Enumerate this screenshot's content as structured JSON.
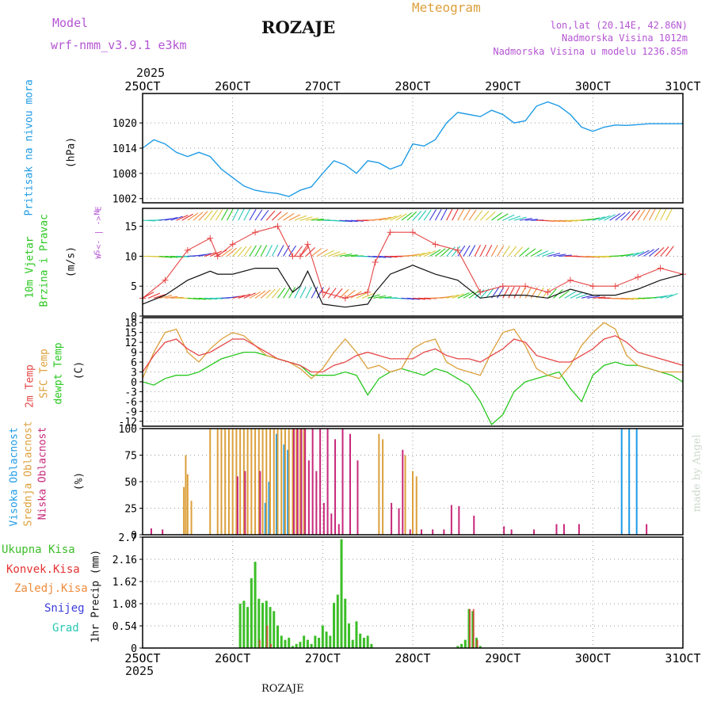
{
  "header": {
    "model_label": "Model",
    "model_name": "wrf-nmm_v3.9.1 e3km",
    "station": "ROZAJE",
    "product": "Meteogram",
    "lonlat": "lon,lat (20.14E, 42.86N)",
    "elevation": "Nadmorska Visina 1012m",
    "model_elevation": "Nadmorska Visina u modelu 1236.85m"
  },
  "time_axis": {
    "year_top": "2025",
    "year_bottom": "2025",
    "ticks": [
      "25OCT",
      "26OCT",
      "27OCT",
      "28OCT",
      "29OCT",
      "30OCT",
      "31OCT"
    ]
  },
  "footer": {
    "station": "ROZAJE",
    "credit": "made by Angel"
  },
  "colors": {
    "pressure": "#1e9be6",
    "temp2m": "#e64646",
    "sfc": "#dca03c",
    "dewpt": "#28c81e",
    "high": "#1e9be6",
    "mid": "#dca03c",
    "low": "#c8287a",
    "precip": "#3cbe28",
    "conv": "#e63232",
    "frozen": "#f08c3c",
    "snow": "#3c3cdc",
    "hail": "#28c8b4",
    "speed": "#111111",
    "gust": "#e64646"
  },
  "chart_data": [
    {
      "type": "line",
      "title": "Pritisak na nivou mora",
      "ylabel": "(hPa)",
      "ylim": [
        1001,
        1027
      ],
      "yticks": [
        1002,
        1008,
        1014,
        1020
      ],
      "x": [
        0,
        3,
        6,
        9,
        12,
        15,
        18,
        21,
        24,
        27,
        30,
        33,
        36,
        39,
        42,
        45,
        48,
        51,
        54,
        57,
        60,
        63,
        66,
        69,
        72,
        75,
        78,
        81,
        84,
        87,
        90,
        93,
        96,
        99,
        102,
        105,
        108,
        111,
        114,
        117,
        120,
        123,
        126,
        129,
        132,
        135,
        138,
        141,
        144
      ],
      "series": [
        {
          "name": "pressure",
          "values": [
            1014,
            1016,
            1015,
            1013,
            1012,
            1013,
            1012,
            1009,
            1007,
            1005,
            1004,
            1003.5,
            1003.2,
            1002.5,
            1004,
            1004.8,
            1008,
            1011,
            1010,
            1008,
            1011,
            1010.5,
            1009,
            1010,
            1015,
            1014.5,
            1016,
            1020,
            1022.5,
            1022,
            1021.5,
            1023,
            1022,
            1020,
            1020.5,
            1024,
            1025,
            1024,
            1022,
            1019,
            1018,
            1019,
            1019.5,
            1019.4,
            1019.6,
            1019.8,
            1019.8,
            1019.8,
            1019.8
          ]
        }
      ]
    },
    {
      "type": "line",
      "title": "10m Vjetar Brzina i Pravac",
      "ylabel": "(m/s)",
      "direction_legend": [
        "S",
        "W <- | -> E",
        "N"
      ],
      "ylim": [
        0,
        18
      ],
      "yticks": [
        0,
        5,
        10,
        15
      ],
      "x": [
        0,
        6,
        12,
        18,
        20,
        24,
        30,
        36,
        40,
        42,
        44,
        48,
        54,
        60,
        62,
        66,
        72,
        78,
        84,
        90,
        96,
        102,
        108,
        114,
        120,
        126,
        132,
        138,
        144
      ],
      "series": [
        {
          "name": "wind speed",
          "values": [
            2,
            3.5,
            6,
            7.5,
            7,
            7,
            8,
            8,
            4,
            5,
            7.5,
            2,
            1.5,
            2,
            4,
            7,
            8.5,
            7,
            6,
            3,
            3.5,
            3.5,
            3,
            4.5,
            3.5,
            3.5,
            4.5,
            6,
            7
          ]
        },
        {
          "name": "wind gust",
          "values": [
            3,
            6,
            11,
            13,
            10,
            12,
            14,
            15,
            10,
            10,
            12,
            4,
            3,
            4,
            9,
            14,
            14,
            12,
            11,
            4,
            5,
            5,
            4,
            6,
            5,
            5,
            6.5,
            8,
            7
          ]
        }
      ]
    },
    {
      "type": "line",
      "title": "2m Temp / SFC Temp / dewpt Temp",
      "ylabel": "(C)",
      "ylim": [
        -13.5,
        19.5
      ],
      "yticks": [
        -12,
        -9,
        -6,
        -3,
        0,
        3,
        6,
        9,
        12,
        15,
        18
      ],
      "x": [
        0,
        3,
        6,
        9,
        12,
        15,
        18,
        21,
        24,
        27,
        30,
        33,
        36,
        39,
        42,
        45,
        48,
        51,
        54,
        57,
        60,
        63,
        66,
        69,
        72,
        75,
        78,
        81,
        84,
        87,
        90,
        93,
        96,
        99,
        102,
        105,
        108,
        111,
        114,
        117,
        120,
        123,
        126,
        129,
        132,
        135,
        138,
        141,
        144
      ],
      "series": [
        {
          "name": "2m Temp",
          "values": [
            3,
            8,
            12,
            13,
            10,
            8,
            9,
            11,
            13,
            13,
            11,
            9,
            7,
            6,
            5,
            3,
            3,
            5,
            6,
            8,
            9,
            8,
            7,
            7,
            7,
            9,
            10,
            8,
            7,
            7,
            6,
            8,
            10,
            13,
            12,
            8,
            7,
            6,
            6,
            8,
            10,
            13,
            14,
            12,
            9,
            8,
            7,
            6,
            5
          ]
        },
        {
          "name": "SFC Temp",
          "values": [
            1,
            9,
            15,
            16,
            9,
            6,
            10,
            13,
            15,
            14,
            11,
            8,
            7,
            6,
            4,
            1,
            4,
            9,
            13,
            9,
            4,
            5,
            3,
            4,
            10,
            12,
            13,
            6,
            4,
            3,
            2,
            9,
            15,
            16,
            11,
            4,
            2,
            1,
            5,
            11,
            15,
            18,
            16,
            8,
            5,
            4,
            3,
            3,
            3
          ]
        },
        {
          "name": "dewpt Temp",
          "values": [
            0,
            -1,
            1,
            2,
            2,
            3,
            5,
            7,
            8,
            9,
            9,
            8,
            7,
            6,
            5,
            2,
            2,
            2,
            3,
            2,
            -4,
            1,
            3,
            4,
            3,
            2,
            4,
            3,
            1,
            -1,
            -6,
            -13,
            -10,
            -3,
            0,
            1,
            2,
            3,
            -2,
            -6,
            2,
            5,
            6,
            5,
            5,
            4,
            3,
            2,
            0
          ]
        }
      ]
    },
    {
      "type": "bar",
      "title": "Visoka / Srednja / Niska Oblacnost",
      "ylabel": "(%)",
      "ylim": [
        0,
        100
      ],
      "yticks": [
        0,
        25,
        50,
        75,
        100
      ],
      "x": [
        2,
        5,
        8,
        10,
        10.5,
        11,
        11.5,
        12,
        13,
        14,
        15,
        16,
        17,
        18,
        19,
        20,
        21,
        22,
        23,
        24,
        25,
        26,
        27,
        28,
        29,
        30,
        31,
        32,
        33,
        34,
        35,
        36,
        37,
        38,
        39,
        40,
        41,
        42,
        43,
        44,
        45,
        46,
        47,
        48,
        49,
        50,
        51,
        52,
        53,
        54,
        55,
        56,
        57,
        58,
        59,
        60,
        61,
        62,
        63,
        64,
        65,
        66,
        67,
        68,
        69,
        70,
        71,
        72,
        73,
        74,
        75,
        76,
        77,
        78,
        80,
        82,
        84,
        86,
        88,
        90,
        92,
        94,
        96,
        98,
        100,
        102,
        104,
        106,
        108,
        110,
        112,
        114,
        116,
        118,
        120,
        122,
        124,
        126,
        128,
        130,
        132,
        134,
        136,
        138,
        140,
        142
      ],
      "series": [
        {
          "name": "Visoka Oblacnost",
          "values": [
            0,
            0,
            0,
            0,
            0,
            0,
            0,
            0,
            0,
            0,
            0,
            0,
            0,
            0,
            0,
            0,
            0,
            0,
            0,
            0,
            0,
            0,
            0,
            0,
            0,
            0,
            0,
            0,
            30,
            50,
            0,
            95,
            0,
            85,
            80,
            0,
            0,
            0,
            0,
            0,
            0,
            0,
            0,
            0,
            0,
            0,
            0,
            0,
            0,
            0,
            0,
            0,
            0,
            0,
            0,
            0,
            0,
            0,
            0,
            0,
            0,
            0,
            0,
            0,
            0,
            0,
            0,
            0,
            0,
            0,
            0,
            0,
            0,
            0,
            0,
            0,
            0,
            0,
            0,
            0,
            0,
            0,
            0,
            0,
            0,
            0,
            0,
            0,
            0,
            0,
            0,
            0,
            0,
            0,
            0,
            0,
            0,
            0,
            100,
            100,
            100,
            0,
            0,
            0,
            0,
            0
          ]
        },
        {
          "name": "Srednja Oblacnost",
          "values": [
            0,
            0,
            0,
            0,
            0,
            45,
            75,
            57,
            32,
            0,
            0,
            0,
            0,
            100,
            0,
            100,
            100,
            100,
            100,
            100,
            100,
            100,
            100,
            100,
            100,
            100,
            100,
            100,
            100,
            100,
            100,
            100,
            100,
            100,
            100,
            100,
            100,
            100,
            100,
            0,
            0,
            0,
            0,
            0,
            0,
            0,
            0,
            0,
            0,
            0,
            0,
            0,
            0,
            0,
            0,
            0,
            0,
            0,
            95,
            90,
            0,
            0,
            0,
            0,
            0,
            75,
            0,
            60,
            55,
            0,
            0,
            0,
            0,
            0,
            0,
            0,
            0,
            0,
            0,
            0,
            0,
            0,
            0,
            0,
            0,
            0,
            0,
            0,
            0,
            0,
            0,
            0,
            0,
            0,
            0,
            0,
            0,
            0,
            0,
            0,
            0,
            0,
            0,
            0,
            0,
            0
          ]
        },
        {
          "name": "Niska Oblacnost",
          "values": [
            6,
            5,
            0,
            0,
            0,
            0,
            0,
            0,
            0,
            0,
            0,
            0,
            0,
            0,
            0,
            0,
            0,
            0,
            0,
            0,
            55,
            0,
            60,
            0,
            0,
            0,
            60,
            0,
            0,
            0,
            0,
            0,
            0,
            0,
            0,
            100,
            100,
            100,
            100,
            70,
            100,
            60,
            100,
            30,
            100,
            20,
            90,
            10,
            100,
            0,
            95,
            0,
            70,
            0,
            0,
            0,
            0,
            0,
            0,
            0,
            0,
            30,
            0,
            25,
            80,
            0,
            5,
            0,
            0,
            5,
            0,
            0,
            5,
            0,
            5,
            28,
            27,
            0,
            18,
            0,
            0,
            0,
            8,
            5,
            0,
            0,
            5,
            0,
            0,
            10,
            10,
            0,
            10,
            0,
            0,
            0,
            0,
            0,
            0,
            0,
            0,
            10,
            0,
            0,
            0,
            0
          ]
        }
      ]
    },
    {
      "type": "bar",
      "title": "1hr Precip",
      "ylabel": "1hr Precip (mm)",
      "legend": [
        "Ukupna Kisa",
        "Konvek.Kisa",
        "Zaledj.Kisa",
        "Snijeg",
        "Grad"
      ],
      "ylim": [
        0,
        2.7
      ],
      "yticks": [
        0,
        0.54,
        1.08,
        1.62,
        2.16,
        2.7
      ],
      "x": [
        26,
        27,
        28,
        29,
        30,
        31,
        32,
        33,
        34,
        35,
        36,
        37,
        38,
        39,
        40,
        41,
        42,
        43,
        44,
        45,
        46,
        47,
        48,
        49,
        50,
        51,
        52,
        53,
        54,
        55,
        56,
        57,
        58,
        59,
        60,
        61,
        84,
        85,
        86,
        87,
        88,
        89,
        90
      ],
      "series": [
        {
          "name": "Ukupna Kisa",
          "values": [
            1.08,
            1.15,
            1.0,
            1.7,
            2.1,
            1.2,
            1.1,
            1.15,
            1.0,
            0.9,
            0.55,
            0.3,
            0.2,
            0.25,
            0.05,
            0.1,
            0.15,
            0.3,
            0.2,
            0.1,
            0.3,
            0.25,
            0.55,
            0.4,
            0.3,
            1.1,
            1.3,
            2.65,
            1.2,
            0.6,
            0.2,
            0.65,
            0.35,
            0.25,
            0.3,
            0.1,
            0.05,
            0.1,
            0.2,
            0.95,
            0.9,
            0.25,
            0.05
          ]
        },
        {
          "name": "Konvek.Kisa",
          "values": [
            0,
            0,
            0,
            0,
            0,
            0.2,
            0,
            0.55,
            0.1,
            0,
            0,
            0,
            0,
            0,
            0,
            0,
            0,
            0,
            0,
            0,
            0,
            0,
            0,
            0,
            0,
            0,
            0,
            0,
            0,
            0,
            0,
            0,
            0,
            0,
            0,
            0,
            0,
            0,
            0,
            0.95,
            0.95,
            0.2,
            0
          ]
        },
        {
          "name": "Zaledj.Kisa",
          "values": [
            0,
            0,
            0,
            0,
            0,
            0,
            0,
            0,
            0,
            0,
            0,
            0,
            0,
            0,
            0,
            0,
            0,
            0,
            0,
            0,
            0,
            0,
            0,
            0,
            0,
            0,
            0,
            0,
            0,
            0,
            0,
            0,
            0,
            0,
            0,
            0,
            0,
            0,
            0,
            0,
            0,
            0,
            0
          ]
        },
        {
          "name": "Snijeg",
          "values": [
            0,
            0,
            0,
            0,
            0,
            0,
            0,
            0,
            0,
            0,
            0,
            0,
            0,
            0,
            0,
            0,
            0,
            0,
            0,
            0,
            0,
            0,
            0,
            0,
            0,
            0,
            0,
            0,
            0,
            0,
            0,
            0,
            0,
            0,
            0,
            0,
            0,
            0,
            0,
            0,
            0,
            0,
            0
          ]
        },
        {
          "name": "Grad",
          "values": [
            0,
            0,
            0,
            0,
            0,
            0,
            0,
            0,
            0,
            0,
            0,
            0,
            0,
            0,
            0,
            0,
            0,
            0,
            0,
            0,
            0,
            0,
            0,
            0,
            0,
            0,
            0,
            0,
            0,
            0,
            0,
            0,
            0,
            0,
            0,
            0,
            0,
            0,
            0,
            0,
            0,
            0,
            0
          ]
        }
      ]
    }
  ]
}
